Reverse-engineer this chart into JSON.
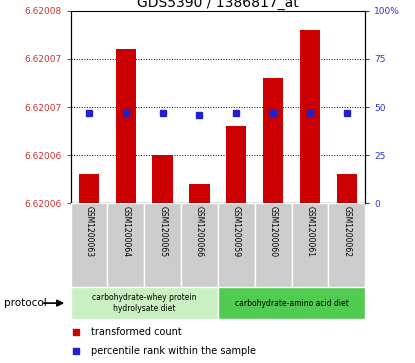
{
  "title": "GDS5390 / 1386817_at",
  "samples": [
    "GSM1200063",
    "GSM1200064",
    "GSM1200065",
    "GSM1200066",
    "GSM1200059",
    "GSM1200060",
    "GSM1200061",
    "GSM1200062"
  ],
  "transformed_count": [
    6.62006,
    6.620073,
    6.620062,
    6.620059,
    6.620065,
    6.62007,
    6.620075,
    6.62006
  ],
  "percentile_rank": [
    47,
    47,
    47,
    46,
    47,
    47,
    47,
    47
  ],
  "baseline": 6.620057,
  "ylim_min": 6.620057,
  "ylim_max": 6.620077,
  "left_yticks": [
    6.62006,
    6.620063,
    6.620065,
    6.620067,
    6.62007,
    6.620073,
    6.620075,
    6.620077
  ],
  "left_ytick_labels": [
    "6.62006",
    "",
    "6.62006",
    "",
    "6.62007",
    "",
    "6.62007",
    "6.62007"
  ],
  "right_yticks": [
    0,
    25,
    50,
    75,
    100
  ],
  "right_ytick_labels": [
    "0",
    "25",
    "50",
    "75",
    "100%"
  ],
  "bar_color": "#cc0000",
  "dot_color": "#2222cc",
  "protocol_groups": [
    {
      "label": "carbohydrate-whey protein\nhydrolysate diet",
      "start": 0,
      "end": 4,
      "color": "#c8f0c0"
    },
    {
      "label": "carbohydrate-amino acid diet",
      "start": 4,
      "end": 8,
      "color": "#50cc50"
    }
  ],
  "protocol_label": "protocol",
  "legend_items": [
    {
      "color": "#cc0000",
      "label": "transformed count"
    },
    {
      "color": "#2222cc",
      "label": "percentile rank within the sample"
    }
  ],
  "title_fontsize": 10,
  "tick_label_color_left": "#cc3333",
  "tick_label_color_right": "#3333cc",
  "sample_area_color": "#cccccc",
  "sample_area_border": "#aaaaaa"
}
